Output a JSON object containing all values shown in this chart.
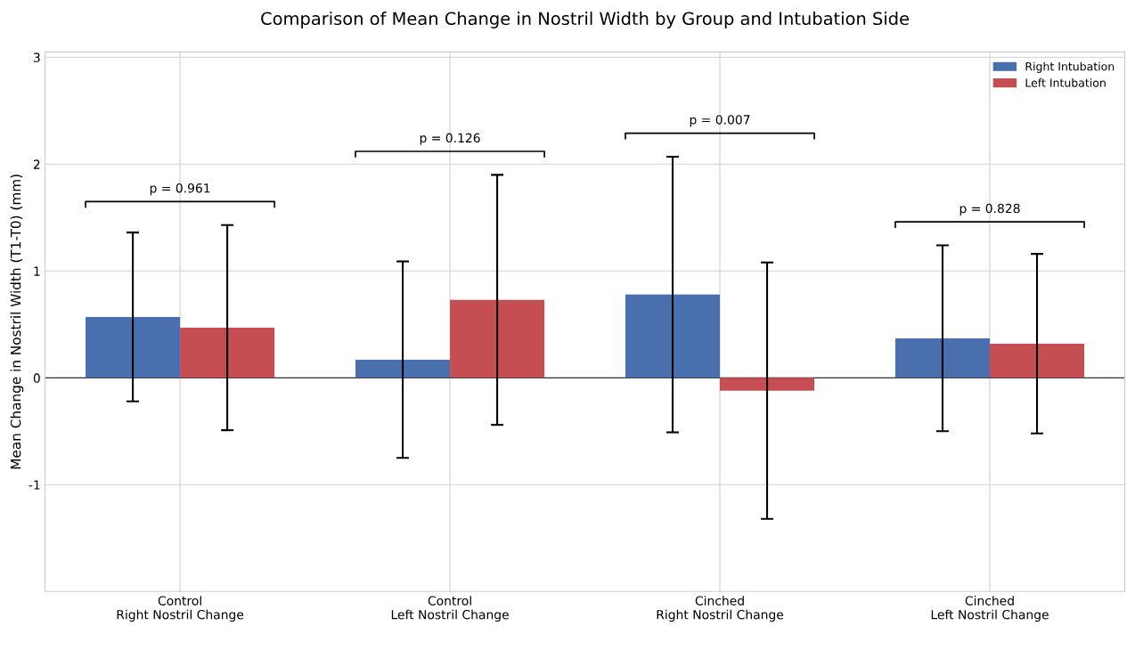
{
  "chart_data": {
    "type": "bar",
    "title": "Comparison of Mean Change in Nostril Width by Group and Intubation Side",
    "ylabel": "Mean Change in Nostril Width (T1-T0) (mm)",
    "categories": [
      "Control\nRight Nostril Change",
      "Control\nLeft Nostril Change",
      "Cinched\nRight Nostril Change",
      "Cinched\nLeft Nostril Change"
    ],
    "series": [
      {
        "name": "Right Intubation",
        "color": "#4a6fae",
        "values": [
          0.57,
          0.17,
          0.78,
          0.37
        ],
        "errors": [
          0.79,
          0.92,
          1.29,
          0.87
        ]
      },
      {
        "name": "Left Intubation",
        "color": "#c44e52",
        "values": [
          0.47,
          0.73,
          -0.12,
          0.32
        ],
        "errors": [
          0.96,
          1.17,
          1.2,
          0.84
        ]
      }
    ],
    "ylim": [
      -2,
      3.05
    ],
    "yticks": [
      -1,
      0,
      1,
      2,
      3
    ],
    "ref_lines": [
      {
        "axis": "y",
        "value": 0,
        "color": "#333333"
      }
    ],
    "annotations": [
      "p = 0.961",
      "p = 0.126",
      "p = 0.007",
      "p = 0.828"
    ],
    "grid": true,
    "legend": "top right"
  }
}
